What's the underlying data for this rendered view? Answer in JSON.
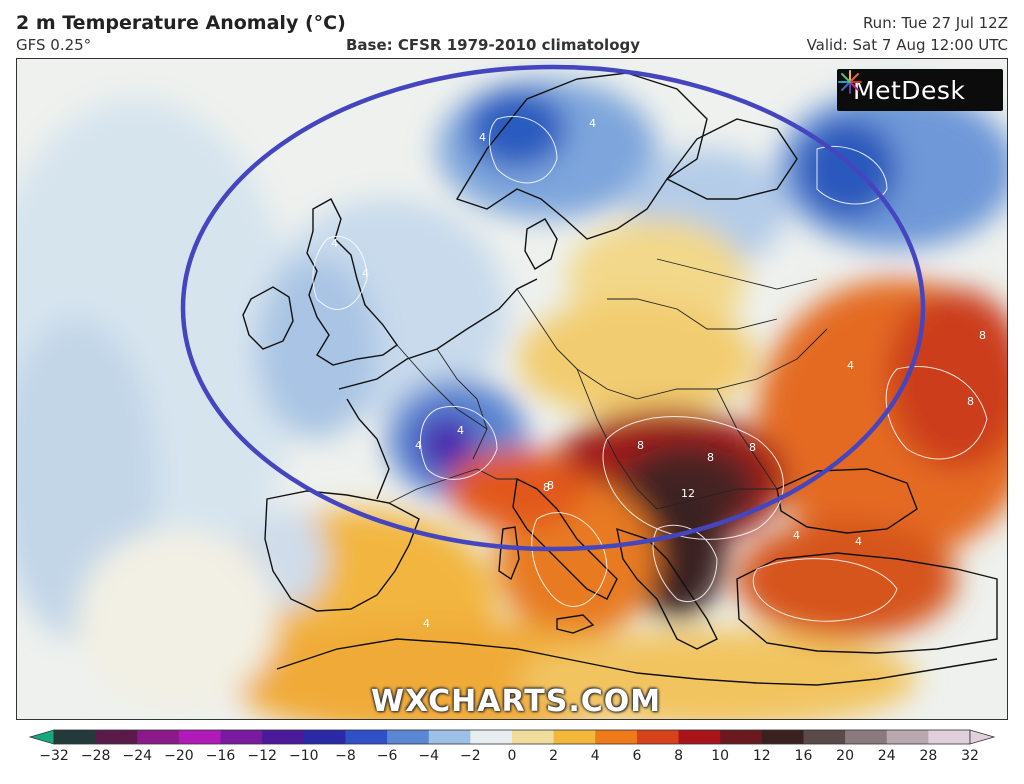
{
  "header": {
    "title": "2 m Temperature Anomaly (°C)",
    "model": "GFS 0.25°",
    "base": "Base: CFSR 1979-2010 climatology",
    "run": "Run: Tue 27 Jul 12Z",
    "valid": "Valid: Sat 7 Aug 12:00 UTC"
  },
  "map": {
    "logo": {
      "icon": "starburst-icon",
      "text": "MetDesk"
    },
    "watermark": "WXCHARTS.COM",
    "highlight_color": "#4545c0",
    "contour_labels": [
      "4",
      "4",
      "4",
      "4",
      "4",
      "4",
      "4",
      "8",
      "8",
      "8",
      "8",
      "8",
      "12",
      "8",
      "4",
      "4",
      "8",
      "4"
    ]
  },
  "colorbar": {
    "ticks": [
      "−32",
      "−28",
      "−24",
      "−20",
      "−16",
      "−12",
      "−10",
      "−8",
      "−6",
      "−4",
      "−2",
      "0",
      "2",
      "4",
      "6",
      "8",
      "10",
      "12",
      "16",
      "20",
      "24",
      "28",
      "32"
    ],
    "colors": [
      "#18a880",
      "#223a3a",
      "#5a1a4a",
      "#8a1a8a",
      "#b01ab8",
      "#7a1aa0",
      "#4a1a9a",
      "#2a2aa8",
      "#3050c8",
      "#5a86d4",
      "#9cc0e6",
      "#e8eef0",
      "#f0dc9c",
      "#f2b83c",
      "#ee7a1a",
      "#d6421a",
      "#a8141a",
      "#6a1a1e",
      "#3a2020",
      "#5a4a4a",
      "#8a7a7e",
      "#b8a8b0",
      "#e0d0dc"
    ]
  }
}
